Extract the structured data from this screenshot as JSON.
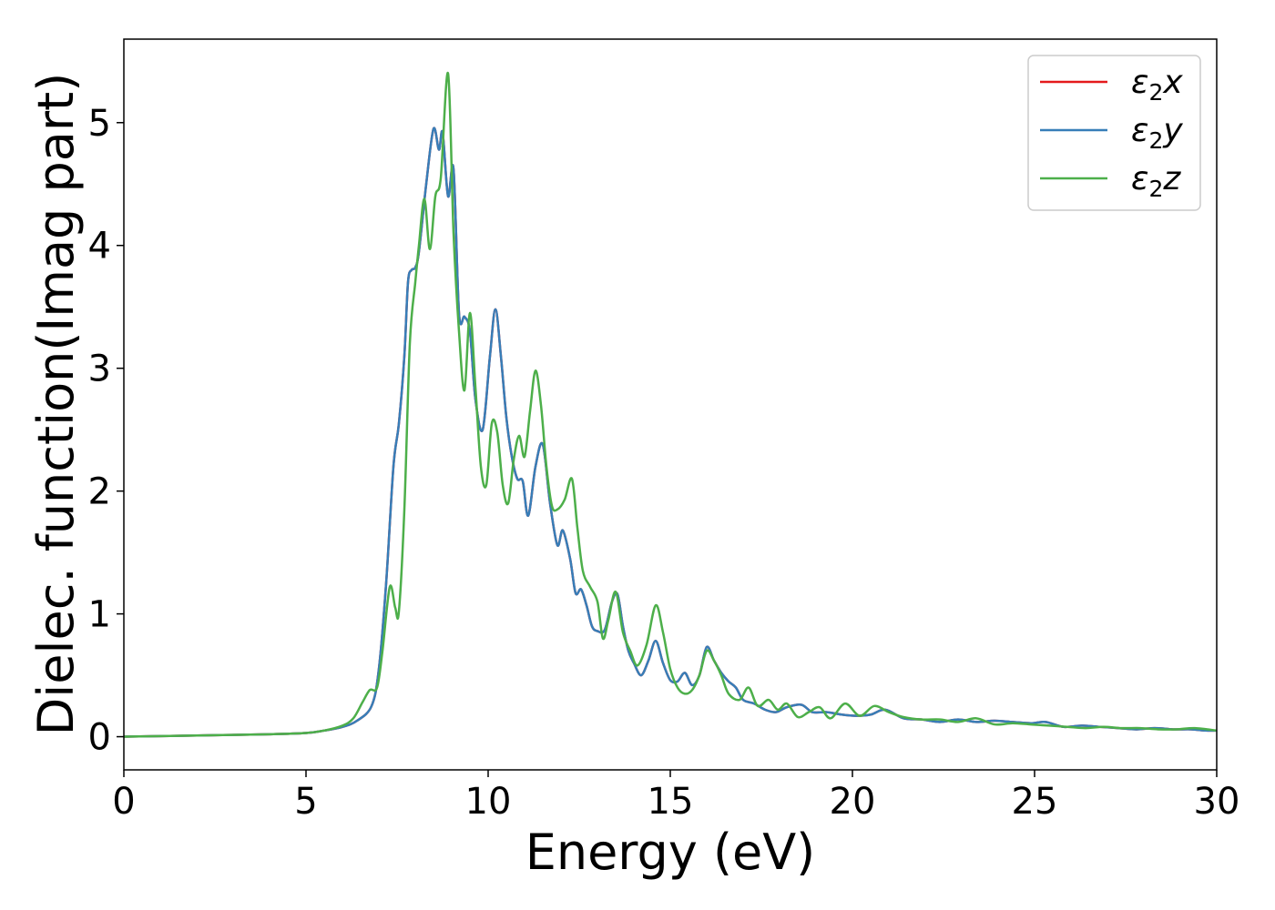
{
  "chart_data": {
    "type": "line",
    "title": "",
    "xlabel": "Energy (eV)",
    "ylabel": "Dielec. function(Imag part)",
    "xlim": [
      0,
      30
    ],
    "ylim": [
      -0.27,
      5.68
    ],
    "xticks": [
      0,
      5,
      10,
      15,
      20,
      25,
      30
    ],
    "yticks": [
      0,
      1,
      2,
      3,
      4,
      5
    ],
    "grid": false,
    "legend_position": "upper-right",
    "series": [
      {
        "name": "ε₂x",
        "legend_base": "ε",
        "legend_sub": "2",
        "legend_var": "x",
        "color": "#e41a1c",
        "x": [
          0,
          2,
          4,
          5,
          5.5,
          6,
          6.4,
          6.8,
          7.0,
          7.2,
          7.4,
          7.55,
          7.7,
          7.8,
          7.9,
          8.0,
          8.1,
          8.3,
          8.5,
          8.65,
          8.75,
          8.9,
          9.05,
          9.2,
          9.35,
          9.5,
          9.65,
          9.85,
          10.05,
          10.2,
          10.35,
          10.5,
          10.65,
          10.8,
          10.95,
          11.1,
          11.3,
          11.5,
          11.7,
          11.9,
          12.05,
          12.25,
          12.4,
          12.55,
          12.7,
          12.85,
          13.0,
          13.2,
          13.4,
          13.55,
          13.7,
          13.85,
          14.0,
          14.2,
          14.4,
          14.6,
          14.8,
          15.0,
          15.2,
          15.4,
          15.6,
          15.8,
          16.0,
          16.2,
          16.4,
          16.6,
          16.8,
          17.0,
          17.3,
          17.6,
          17.9,
          18.2,
          18.6,
          18.9,
          19.3,
          19.7,
          20.1,
          20.5,
          20.9,
          21.4,
          21.9,
          22.4,
          22.9,
          23.4,
          23.9,
          24.4,
          24.9,
          25.3,
          25.8,
          26.3,
          26.8,
          27.3,
          27.8,
          28.3,
          28.8,
          29.3,
          29.7,
          30
        ],
        "values": [
          0.0,
          0.01,
          0.02,
          0.03,
          0.05,
          0.08,
          0.13,
          0.25,
          0.55,
          1.25,
          2.2,
          2.55,
          3.1,
          3.7,
          3.8,
          3.82,
          3.95,
          4.5,
          4.95,
          4.78,
          4.92,
          4.4,
          4.62,
          3.45,
          3.42,
          3.3,
          2.75,
          2.5,
          3.1,
          3.48,
          3.1,
          2.6,
          2.28,
          2.1,
          2.08,
          1.8,
          2.2,
          2.38,
          1.9,
          1.56,
          1.68,
          1.45,
          1.17,
          1.2,
          1.07,
          0.9,
          0.86,
          0.87,
          1.1,
          1.16,
          0.9,
          0.7,
          0.6,
          0.5,
          0.62,
          0.78,
          0.6,
          0.46,
          0.45,
          0.52,
          0.42,
          0.5,
          0.73,
          0.62,
          0.52,
          0.45,
          0.4,
          0.3,
          0.27,
          0.22,
          0.2,
          0.24,
          0.26,
          0.2,
          0.2,
          0.18,
          0.17,
          0.18,
          0.22,
          0.15,
          0.14,
          0.12,
          0.14,
          0.12,
          0.13,
          0.12,
          0.11,
          0.12,
          0.08,
          0.09,
          0.08,
          0.07,
          0.06,
          0.07,
          0.06,
          0.06,
          0.05,
          0.05
        ]
      },
      {
        "name": "ε₂y",
        "legend_base": "ε",
        "legend_sub": "2",
        "legend_var": "y",
        "color": "#377eb8",
        "x": [
          0,
          2,
          4,
          5,
          5.5,
          6,
          6.4,
          6.8,
          7.0,
          7.2,
          7.4,
          7.55,
          7.7,
          7.8,
          7.9,
          8.0,
          8.1,
          8.3,
          8.5,
          8.65,
          8.75,
          8.9,
          9.05,
          9.2,
          9.35,
          9.5,
          9.65,
          9.85,
          10.05,
          10.2,
          10.35,
          10.5,
          10.65,
          10.8,
          10.95,
          11.1,
          11.3,
          11.5,
          11.7,
          11.9,
          12.05,
          12.25,
          12.4,
          12.55,
          12.7,
          12.85,
          13.0,
          13.2,
          13.4,
          13.55,
          13.7,
          13.85,
          14.0,
          14.2,
          14.4,
          14.6,
          14.8,
          15.0,
          15.2,
          15.4,
          15.6,
          15.8,
          16.0,
          16.2,
          16.4,
          16.6,
          16.8,
          17.0,
          17.3,
          17.6,
          17.9,
          18.2,
          18.6,
          18.9,
          19.3,
          19.7,
          20.1,
          20.5,
          20.9,
          21.4,
          21.9,
          22.4,
          22.9,
          23.4,
          23.9,
          24.4,
          24.9,
          25.3,
          25.8,
          26.3,
          26.8,
          27.3,
          27.8,
          28.3,
          28.8,
          29.3,
          29.7,
          30
        ],
        "values": [
          0.0,
          0.01,
          0.02,
          0.03,
          0.05,
          0.08,
          0.13,
          0.25,
          0.55,
          1.25,
          2.2,
          2.55,
          3.1,
          3.7,
          3.8,
          3.82,
          3.95,
          4.5,
          4.95,
          4.78,
          4.92,
          4.4,
          4.62,
          3.45,
          3.42,
          3.3,
          2.75,
          2.5,
          3.1,
          3.48,
          3.1,
          2.6,
          2.28,
          2.1,
          2.08,
          1.8,
          2.2,
          2.38,
          1.9,
          1.56,
          1.68,
          1.45,
          1.17,
          1.2,
          1.07,
          0.9,
          0.86,
          0.87,
          1.1,
          1.16,
          0.9,
          0.7,
          0.6,
          0.5,
          0.62,
          0.78,
          0.6,
          0.46,
          0.45,
          0.52,
          0.42,
          0.5,
          0.73,
          0.62,
          0.52,
          0.45,
          0.4,
          0.3,
          0.27,
          0.22,
          0.2,
          0.24,
          0.26,
          0.2,
          0.2,
          0.18,
          0.17,
          0.18,
          0.22,
          0.15,
          0.14,
          0.12,
          0.14,
          0.12,
          0.13,
          0.12,
          0.11,
          0.12,
          0.08,
          0.09,
          0.08,
          0.07,
          0.06,
          0.07,
          0.06,
          0.06,
          0.05,
          0.05
        ]
      },
      {
        "name": "ε₂z",
        "legend_base": "ε",
        "legend_sub": "2",
        "legend_var": "z",
        "color": "#4daf4a",
        "x": [
          0,
          2,
          4,
          5,
          5.5,
          6,
          6.3,
          6.55,
          6.75,
          6.95,
          7.1,
          7.3,
          7.45,
          7.55,
          7.7,
          7.85,
          8.0,
          8.1,
          8.25,
          8.4,
          8.55,
          8.7,
          8.9,
          9.05,
          9.2,
          9.35,
          9.5,
          9.65,
          9.8,
          9.95,
          10.1,
          10.25,
          10.4,
          10.55,
          10.7,
          10.85,
          11.0,
          11.15,
          11.3,
          11.45,
          11.6,
          11.75,
          11.9,
          12.1,
          12.3,
          12.45,
          12.6,
          12.8,
          13.0,
          13.15,
          13.3,
          13.5,
          13.7,
          13.9,
          14.1,
          14.35,
          14.6,
          14.8,
          15.0,
          15.2,
          15.4,
          15.6,
          15.8,
          16.0,
          16.2,
          16.4,
          16.6,
          16.9,
          17.15,
          17.4,
          17.7,
          17.95,
          18.2,
          18.5,
          18.8,
          19.1,
          19.4,
          19.8,
          20.2,
          20.6,
          21.0,
          21.4,
          21.9,
          22.4,
          22.9,
          23.4,
          23.9,
          24.4,
          24.9,
          25.4,
          25.9,
          26.4,
          26.9,
          27.4,
          27.9,
          28.4,
          28.9,
          29.4,
          30
        ],
        "values": [
          0.0,
          0.01,
          0.02,
          0.03,
          0.05,
          0.09,
          0.15,
          0.28,
          0.38,
          0.4,
          0.7,
          1.22,
          1.05,
          1.02,
          1.85,
          3.2,
          3.7,
          4.0,
          4.38,
          3.97,
          4.4,
          4.55,
          5.4,
          4.1,
          3.3,
          2.82,
          3.45,
          2.85,
          2.2,
          2.05,
          2.55,
          2.48,
          2.05,
          1.9,
          2.25,
          2.45,
          2.28,
          2.65,
          2.98,
          2.7,
          2.2,
          1.88,
          1.85,
          1.93,
          2.1,
          1.7,
          1.35,
          1.22,
          1.1,
          0.8,
          0.95,
          1.18,
          0.85,
          0.7,
          0.58,
          0.75,
          1.07,
          0.85,
          0.55,
          0.4,
          0.35,
          0.38,
          0.5,
          0.7,
          0.62,
          0.5,
          0.35,
          0.3,
          0.4,
          0.25,
          0.3,
          0.22,
          0.27,
          0.16,
          0.2,
          0.24,
          0.15,
          0.27,
          0.17,
          0.25,
          0.2,
          0.16,
          0.14,
          0.14,
          0.12,
          0.15,
          0.1,
          0.11,
          0.1,
          0.09,
          0.08,
          0.07,
          0.08,
          0.07,
          0.07,
          0.06,
          0.06,
          0.07,
          0.05
        ]
      }
    ]
  }
}
